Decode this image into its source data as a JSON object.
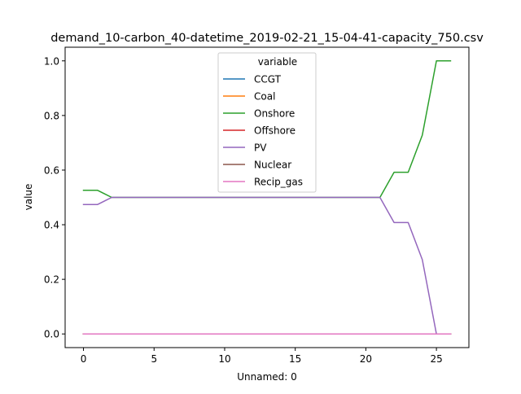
{
  "chart_data": {
    "type": "line",
    "title": "demand_10-carbon_40-datetime_2019-02-21_15-04-41-capacity_750.csv",
    "xlabel": "Unnamed: 0",
    "ylabel": "value",
    "xlim": [
      -1.3,
      27.3
    ],
    "ylim": [
      -0.05,
      1.05
    ],
    "xticks": [
      0,
      5,
      10,
      15,
      20,
      25
    ],
    "yticks": [
      0.0,
      0.2,
      0.4,
      0.6,
      0.8,
      1.0
    ],
    "xtick_labels": [
      "0",
      "5",
      "10",
      "15",
      "20",
      "25"
    ],
    "ytick_labels": [
      "0.0",
      "0.2",
      "0.4",
      "0.6",
      "0.8",
      "1.0"
    ],
    "grid": false,
    "legend": {
      "title": "variable",
      "placement": "upper center"
    },
    "x": [
      0,
      1,
      2,
      3,
      4,
      5,
      6,
      7,
      8,
      9,
      10,
      11,
      12,
      13,
      14,
      15,
      16,
      17,
      18,
      19,
      20,
      21,
      22,
      23,
      24,
      25,
      26
    ],
    "series": [
      {
        "name": "CCGT",
        "color": "#1f77b4",
        "values": [
          0,
          0,
          0,
          0,
          0,
          0,
          0,
          0,
          0,
          0,
          0,
          0,
          0,
          0,
          0,
          0,
          0,
          0,
          0,
          0,
          0,
          0,
          0,
          0,
          0,
          0,
          0
        ]
      },
      {
        "name": "Coal",
        "color": "#ff7f0e",
        "values": [
          0,
          0,
          0,
          0,
          0,
          0,
          0,
          0,
          0,
          0,
          0,
          0,
          0,
          0,
          0,
          0,
          0,
          0,
          0,
          0,
          0,
          0,
          0,
          0,
          0,
          0,
          0
        ]
      },
      {
        "name": "Onshore",
        "color": "#2ca02c",
        "values": [
          0.526,
          0.526,
          0.5,
          0.5,
          0.5,
          0.5,
          0.5,
          0.5,
          0.5,
          0.5,
          0.5,
          0.5,
          0.5,
          0.5,
          0.5,
          0.5,
          0.5,
          0.5,
          0.5,
          0.5,
          0.5,
          0.5,
          0.592,
          0.592,
          0.728,
          1.0,
          1.0
        ]
      },
      {
        "name": "Offshore",
        "color": "#d62728",
        "values": [
          0,
          0,
          0,
          0,
          0,
          0,
          0,
          0,
          0,
          0,
          0,
          0,
          0,
          0,
          0,
          0,
          0,
          0,
          0,
          0,
          0,
          0,
          0,
          0,
          0,
          0,
          0
        ]
      },
      {
        "name": "PV",
        "color": "#9467bd",
        "values": [
          0.474,
          0.474,
          0.5,
          0.5,
          0.5,
          0.5,
          0.5,
          0.5,
          0.5,
          0.5,
          0.5,
          0.5,
          0.5,
          0.5,
          0.5,
          0.5,
          0.5,
          0.5,
          0.5,
          0.5,
          0.5,
          0.5,
          0.408,
          0.408,
          0.272,
          0.0,
          0.0
        ]
      },
      {
        "name": "Nuclear",
        "color": "#8c564b",
        "values": [
          0,
          0,
          0,
          0,
          0,
          0,
          0,
          0,
          0,
          0,
          0,
          0,
          0,
          0,
          0,
          0,
          0,
          0,
          0,
          0,
          0,
          0,
          0,
          0,
          0,
          0,
          0
        ]
      },
      {
        "name": "Recip_gas",
        "color": "#e377c2",
        "values": [
          0,
          0,
          0,
          0,
          0,
          0,
          0,
          0,
          0,
          0,
          0,
          0,
          0,
          0,
          0,
          0,
          0,
          0,
          0,
          0,
          0,
          0,
          0,
          0,
          0,
          0,
          0
        ]
      }
    ]
  }
}
